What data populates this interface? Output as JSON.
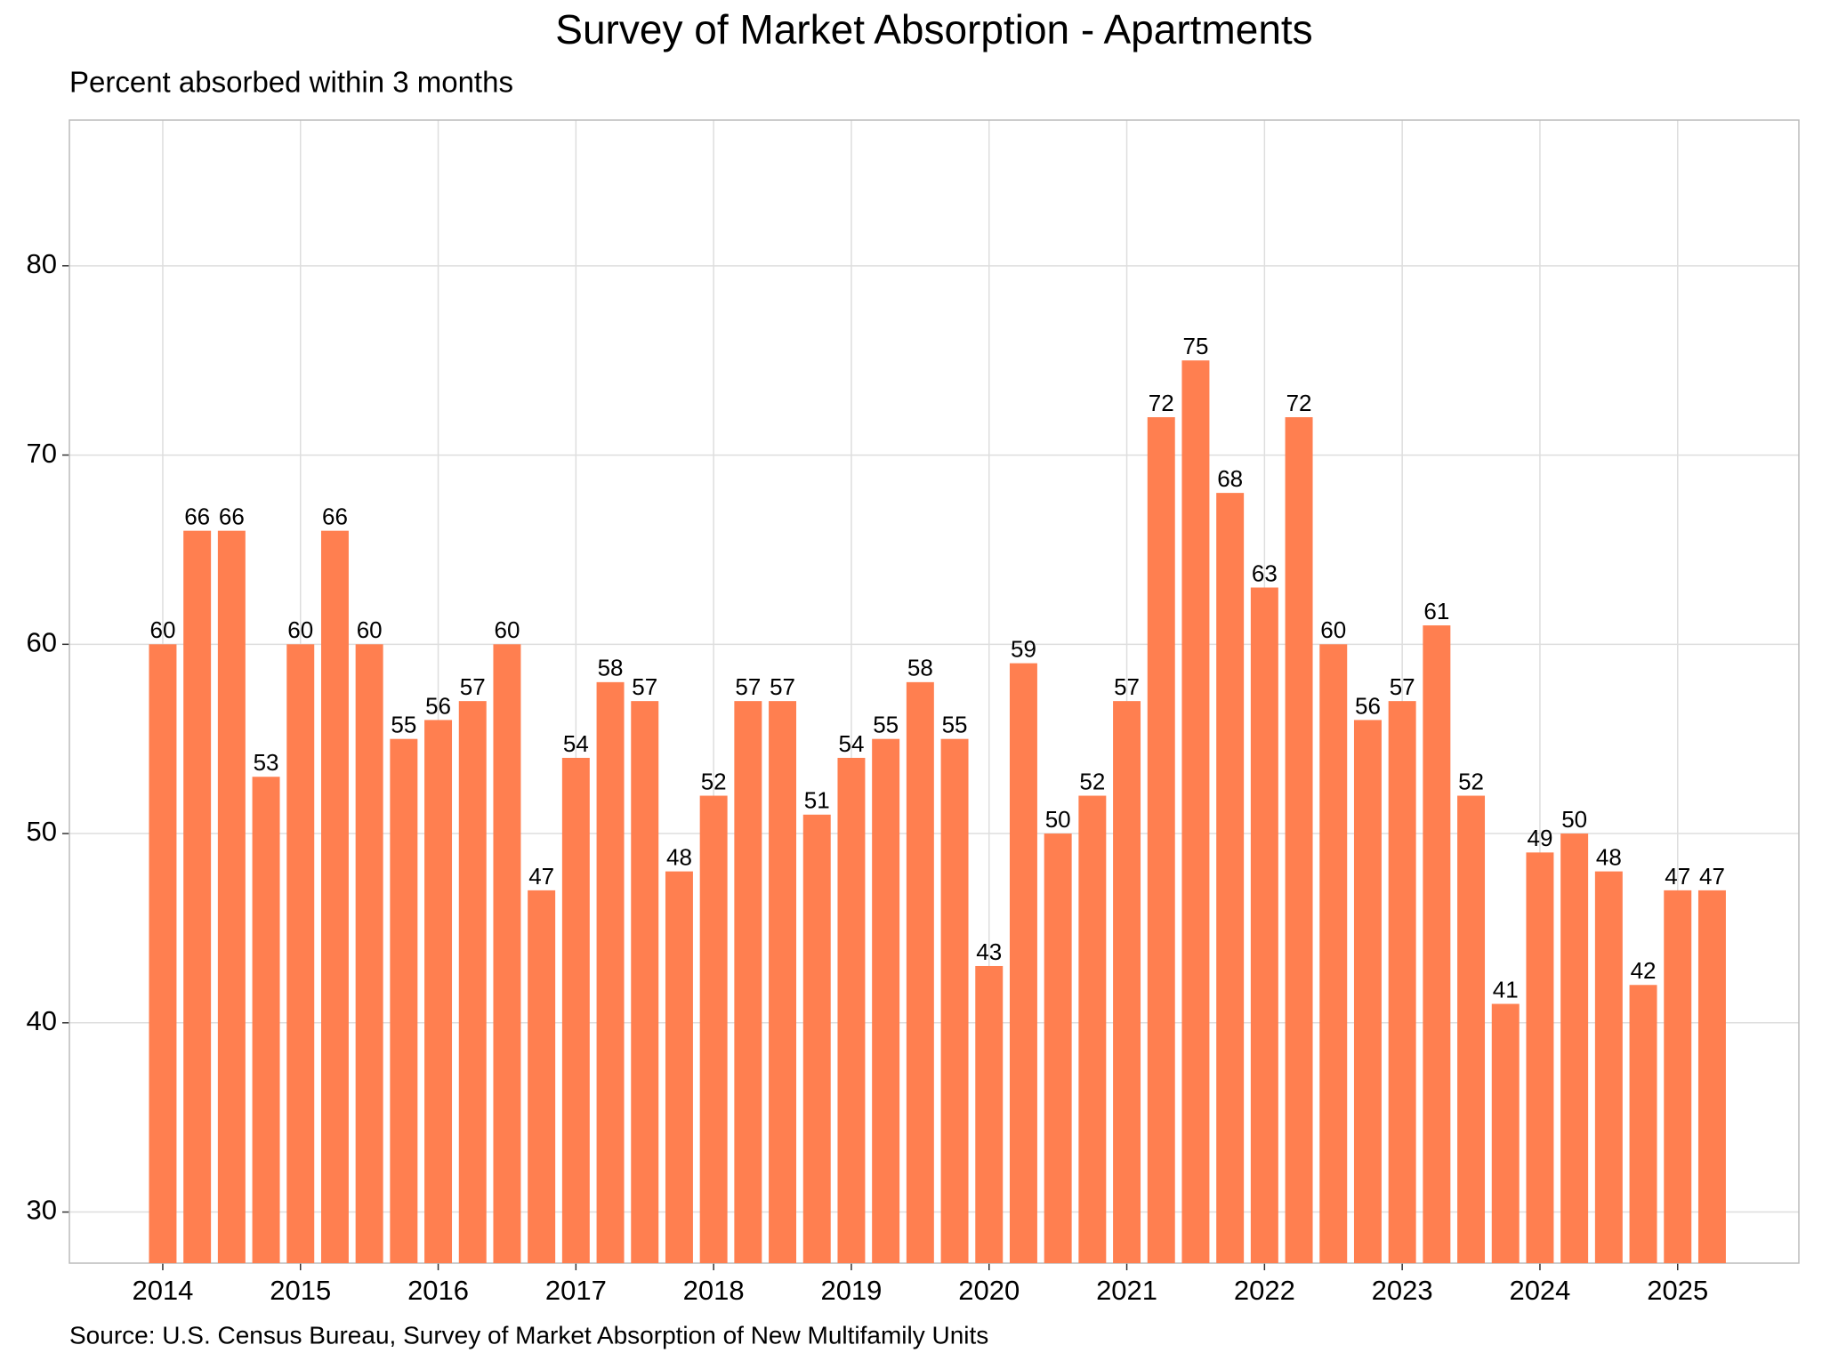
{
  "chart_data": {
    "type": "bar",
    "title": "Survey of Market Absorption - Apartments",
    "subtitle": "Percent absorbed within 3 months",
    "source": "Source: U.S. Census Bureau, Survey of Market Absorption of New Multifamily Units",
    "categories": [
      "2014",
      null,
      null,
      null,
      "2015",
      null,
      null,
      null,
      "2016",
      null,
      null,
      null,
      "2017",
      null,
      null,
      null,
      "2018",
      null,
      null,
      null,
      "2019",
      null,
      null,
      null,
      "2020",
      null,
      null,
      null,
      "2021",
      null,
      null,
      null,
      "2022",
      null,
      null,
      null,
      "2023",
      null,
      null,
      null,
      "2024",
      null,
      null,
      null,
      "2025",
      null
    ],
    "values": [
      60,
      66,
      66,
      53,
      60,
      66,
      60,
      55,
      56,
      57,
      60,
      47,
      54,
      58,
      57,
      48,
      52,
      57,
      57,
      51,
      54,
      55,
      58,
      55,
      43,
      59,
      50,
      52,
      57,
      72,
      75,
      68,
      63,
      72,
      60,
      56,
      57,
      61,
      52,
      41,
      49,
      50,
      48,
      42,
      47,
      47
    ],
    "color": "#ff7f50",
    "ylim": [
      27.3,
      87.7
    ],
    "yticks": [
      30,
      40,
      50,
      60,
      70,
      80
    ],
    "grid": true
  }
}
